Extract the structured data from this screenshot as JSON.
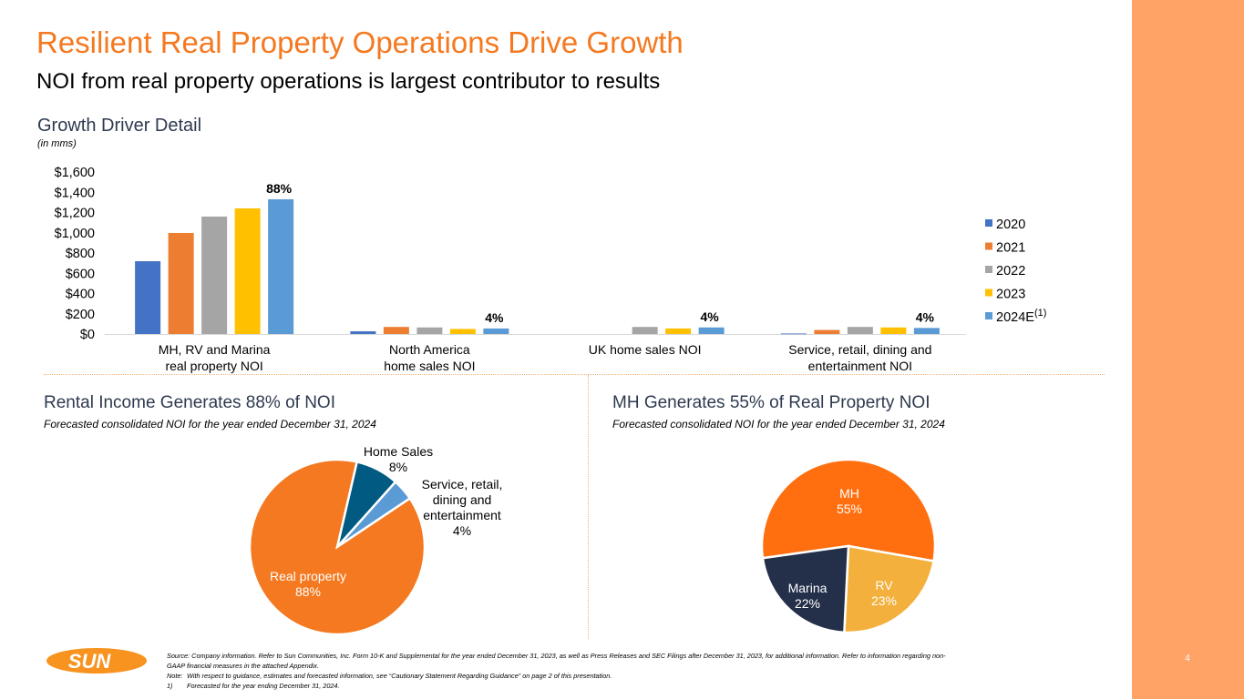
{
  "header": {
    "title": "Resilient Real Property Operations Drive Growth",
    "subtitle": "NOI from real property operations is largest contributor to results"
  },
  "growth_section": {
    "title": "Growth Driver Detail",
    "units": "(in mms)"
  },
  "rental_section": {
    "title": "Rental Income Generates 88% of NOI",
    "subtitle": "Forecasted consolidated NOI for the year ended December 31, 2024"
  },
  "mh_section": {
    "title": "MH Generates 55% of Real Property NOI",
    "subtitle": "Forecasted consolidated NOI for the year ended December 31, 2024"
  },
  "chart_data": [
    {
      "type": "bar",
      "title": "Growth Driver Detail",
      "units": "(in mms)",
      "xlabel": "",
      "ylabel": "",
      "ylim": [
        0,
        1600
      ],
      "yticks": [
        0,
        200,
        400,
        600,
        800,
        1000,
        1200,
        1400,
        1600
      ],
      "ytick_labels": [
        "$0",
        "$200",
        "$400",
        "$600",
        "$800",
        "$1,000",
        "$1,200",
        "$1,400",
        "$1,600"
      ],
      "grid": false,
      "legend_position": "right",
      "categories": [
        [
          "MH, RV and Marina",
          "real property NOI"
        ],
        [
          "North America",
          "home sales NOI"
        ],
        [
          "UK home sales NOI"
        ],
        [
          "Service, retail, dining and",
          "entertainment NOI"
        ]
      ],
      "series": [
        {
          "name": "2020",
          "superscript": "",
          "color": "#4472C4",
          "values": [
            719,
            27,
            null,
            5
          ]
        },
        {
          "name": "2021",
          "superscript": "",
          "color": "#ED7D31",
          "values": [
            998,
            70,
            null,
            40
          ]
        },
        {
          "name": "2022",
          "superscript": "",
          "color": "#A5A5A5",
          "values": [
            1160,
            65,
            70,
            70
          ]
        },
        {
          "name": "2023",
          "superscript": "",
          "color": "#FFC000",
          "values": [
            1241,
            50,
            55,
            65
          ]
        },
        {
          "name": "2024E",
          "superscript": "(1)",
          "color": "#5B9BD5",
          "values": [
            1331,
            55,
            65,
            60
          ]
        }
      ],
      "annotations": [
        "88%",
        "4%",
        "4%",
        "4%"
      ]
    },
    {
      "type": "pie",
      "title": "Rental Income Generates 88% of NOI",
      "slices": [
        {
          "label": "Real property",
          "value": 88,
          "display": "88%",
          "color": "#F47920"
        },
        {
          "label": "Home Sales",
          "value": 8,
          "display": "8%",
          "color": "#005A82"
        },
        {
          "label": "Service, retail, dining and entertainment",
          "value": 4,
          "display": "4%",
          "color": "#5B9BD5"
        }
      ]
    },
    {
      "type": "pie",
      "title": "MH Generates 55% of Real Property NOI",
      "slices": [
        {
          "label": "MH",
          "value": 55,
          "display": "55%",
          "color": "#FF6F0F"
        },
        {
          "label": "RV",
          "value": 23,
          "display": "23%",
          "color": "#F3B03C"
        },
        {
          "label": "Marina",
          "value": 22,
          "display": "22%",
          "color": "#24304A"
        }
      ]
    }
  ],
  "footer": {
    "logo_text": "SUN",
    "source": "Source: Company information. Refer to Sun Communities, Inc. Form 10-K and Supplemental for the year ended December 31, 2023, as well as Press Releases and SEC Filings after December 31, 2023, for additional information. Refer to information regarding non-",
    "source_cont": "GAAP financial measures in the attached Appendix.",
    "note_label": "Note:",
    "note": "With respect to guidance, estimates and forecasted information, see “Cautionary Statement Regarding Guidance” on page 2 of this presentation.",
    "footnote_label": "1)",
    "footnote": "Forecasted for the year ending December 31, 2024.",
    "page_number": "4"
  }
}
